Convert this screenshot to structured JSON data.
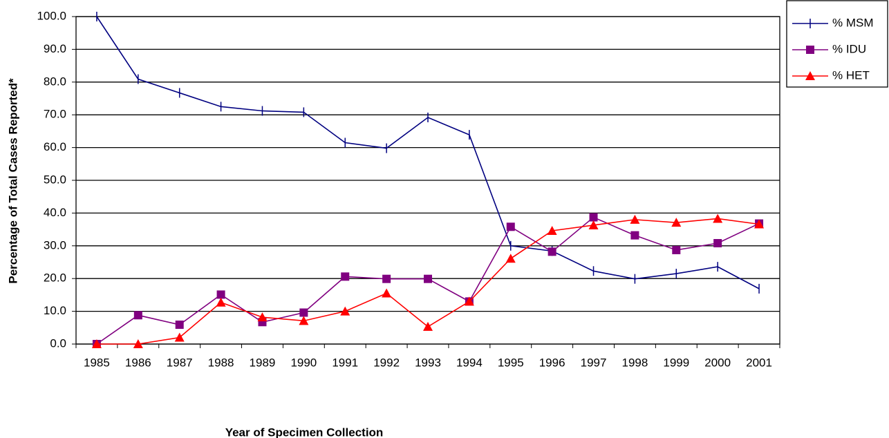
{
  "chart_data": {
    "type": "line",
    "x_label": "Year of Specimen Collection",
    "y_label": "Percentage of Total Cases Reported*",
    "categories": [
      "1985",
      "1986",
      "1987",
      "1988",
      "1989",
      "1990",
      "1991",
      "1992",
      "1993",
      "1994",
      "1995",
      "1996",
      "1997",
      "1998",
      "1999",
      "2000",
      "2001"
    ],
    "series": [
      {
        "name": "% MSM",
        "color": "#000080",
        "marker": "tick",
        "values": [
          100,
          80.9,
          76.7,
          72.5,
          71.2,
          70.8,
          61.5,
          59.8,
          69.2,
          63.9,
          30.0,
          28.4,
          22.3,
          19.9,
          21.5,
          23.6,
          16.9
        ]
      },
      {
        "name": "% IDU",
        "color": "#800080",
        "marker": "square",
        "values": [
          0,
          8.8,
          5.9,
          15.1,
          6.7,
          9.6,
          20.6,
          19.9,
          19.9,
          13.0,
          35.8,
          28.2,
          38.7,
          33.2,
          28.7,
          30.8,
          36.8
        ]
      },
      {
        "name": "% HET",
        "color": "#ff0000",
        "marker": "triangle",
        "values": [
          0,
          0,
          2.0,
          12.7,
          8.2,
          7.1,
          10.0,
          15.5,
          5.3,
          13.0,
          26.1,
          34.6,
          36.3,
          38.0,
          37.1,
          38.3,
          36.6
        ]
      }
    ],
    "ylim": [
      0,
      100
    ],
    "yticks": [
      {
        "value": 0,
        "label": "0.0"
      },
      {
        "value": 10,
        "label": "10.0"
      },
      {
        "value": 20,
        "label": "20.0"
      },
      {
        "value": 30,
        "label": "30.0"
      },
      {
        "value": 40,
        "label": "40.0"
      },
      {
        "value": 50,
        "label": "50.0"
      },
      {
        "value": 60,
        "label": "60.0"
      },
      {
        "value": 70,
        "label": "70.0"
      },
      {
        "value": 80,
        "label": "80.0"
      },
      {
        "value": 90,
        "label": "90.0"
      },
      {
        "value": 100,
        "label": "100.0"
      }
    ],
    "grid": true,
    "legend": "top-right"
  }
}
